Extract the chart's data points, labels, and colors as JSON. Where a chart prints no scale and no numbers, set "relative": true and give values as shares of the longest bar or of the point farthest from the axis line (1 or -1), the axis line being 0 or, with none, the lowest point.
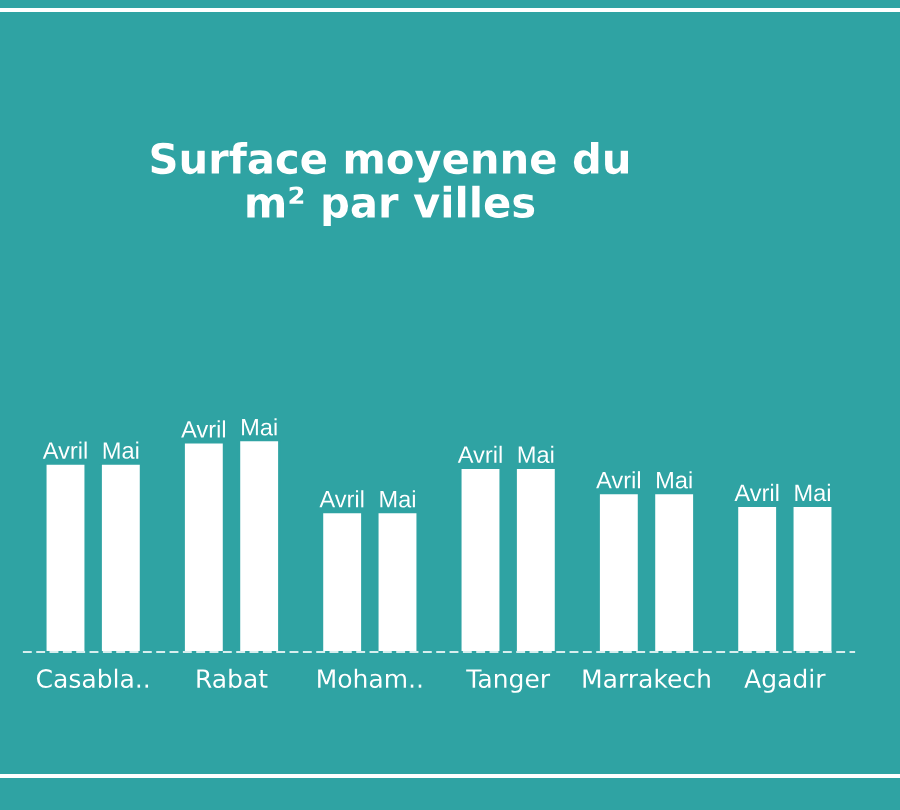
{
  "chart_data": {
    "type": "bar",
    "title": "Surface moyenne du\nm² par villes",
    "categories": [
      "Casabla..",
      "Rabat",
      "Moham..",
      "Tanger",
      "Marrakech",
      "Agadir"
    ],
    "relative": true,
    "series": [
      {
        "name": "Avril",
        "color": "#ffffff",
        "values": [
          0.89,
          0.99,
          0.66,
          0.87,
          0.75,
          0.69
        ]
      },
      {
        "name": "Mai",
        "color": "#ffffff",
        "values": [
          0.89,
          1.0,
          0.66,
          0.87,
          0.75,
          0.69
        ]
      }
    ],
    "grid": false,
    "legend": false
  }
}
